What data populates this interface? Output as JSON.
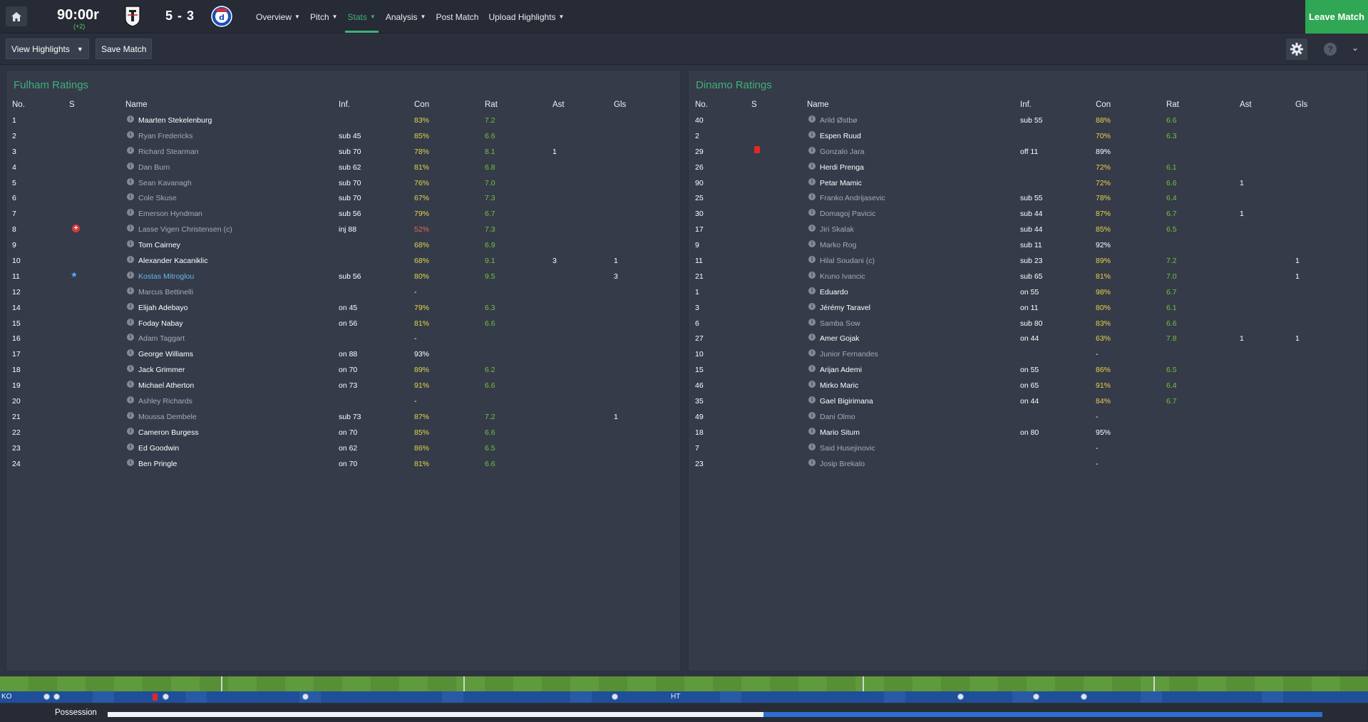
{
  "header": {
    "clock": "90:00r",
    "added_time": "(+2)",
    "score": "5 - 3",
    "nav": [
      {
        "label": "Overview",
        "dropdown": true,
        "active": false
      },
      {
        "label": "Pitch",
        "dropdown": true,
        "active": false
      },
      {
        "label": "Stats",
        "dropdown": true,
        "active": true
      },
      {
        "label": "Analysis",
        "dropdown": true,
        "active": false
      },
      {
        "label": "Post Match",
        "dropdown": false,
        "active": false
      },
      {
        "label": "Upload Highlights",
        "dropdown": true,
        "active": false
      }
    ],
    "leave_label": "Leave Match",
    "accent_color": "#3fb07a",
    "leave_color": "#2fa754"
  },
  "toolbar": {
    "highlights_label": "View Highlights",
    "save_label": "Save Match",
    "help_glyph": "?"
  },
  "columns": {
    "no": "No.",
    "s": "S",
    "name": "Name",
    "inf": "Inf.",
    "con": "Con",
    "rat": "Rat",
    "ast": "Ast",
    "gls": "Gls"
  },
  "home": {
    "title": "Fulham Ratings",
    "rows": [
      {
        "no": "1",
        "name": "Maarten Stekelenburg",
        "style": "on",
        "inf": "",
        "con": "83%",
        "rat": "7.2",
        "ast": "",
        "gls": ""
      },
      {
        "no": "2",
        "name": "Ryan Fredericks",
        "style": "dim",
        "inf": "sub 45",
        "con": "85%",
        "rat": "6.6",
        "ast": "",
        "gls": ""
      },
      {
        "no": "3",
        "name": "Richard Stearman",
        "style": "dim",
        "inf": "sub 70",
        "con": "78%",
        "rat": "8.1",
        "ast": "1",
        "gls": ""
      },
      {
        "no": "4",
        "name": "Dan Burn",
        "style": "dim",
        "inf": "sub 62",
        "con": "81%",
        "rat": "6.8",
        "ast": "",
        "gls": ""
      },
      {
        "no": "5",
        "name": "Sean Kavanagh",
        "style": "dim",
        "inf": "sub 70",
        "con": "76%",
        "rat": "7.0",
        "ast": "",
        "gls": ""
      },
      {
        "no": "6",
        "name": "Cole Skuse",
        "style": "dim",
        "inf": "sub 70",
        "con": "67%",
        "rat": "7.3",
        "ast": "",
        "gls": ""
      },
      {
        "no": "7",
        "name": "Emerson Hyndman",
        "style": "dim",
        "inf": "sub 56",
        "con": "79%",
        "rat": "6.7",
        "ast": "",
        "gls": ""
      },
      {
        "no": "8",
        "name": "Lasse Vigen Christensen (c)",
        "style": "dim",
        "inf": "inj 88",
        "con": "52%",
        "rat": "7.3",
        "ast": "",
        "gls": "",
        "icon": "injury",
        "con_color": "red"
      },
      {
        "no": "9",
        "name": "Tom Cairney",
        "style": "on",
        "inf": "",
        "con": "68%",
        "rat": "6.9",
        "ast": "",
        "gls": ""
      },
      {
        "no": "10",
        "name": "Alexander Kacaniklic",
        "style": "on",
        "inf": "",
        "con": "68%",
        "rat": "9.1",
        "ast": "3",
        "gls": "1"
      },
      {
        "no": "11",
        "name": "Kostas Mitroglou",
        "style": "link",
        "inf": "sub 56",
        "con": "80%",
        "rat": "9.5",
        "ast": "",
        "gls": "3",
        "icon": "star"
      },
      {
        "no": "12",
        "name": "Marcus Bettinelli",
        "style": "dim",
        "inf": "",
        "con": "-",
        "rat": "",
        "ast": "",
        "gls": ""
      },
      {
        "no": "14",
        "name": "Elijah Adebayo",
        "style": "on",
        "inf": "on 45",
        "con": "79%",
        "rat": "6.3",
        "ast": "",
        "gls": ""
      },
      {
        "no": "15",
        "name": "Foday Nabay",
        "style": "on",
        "inf": "on 56",
        "con": "81%",
        "rat": "6.6",
        "ast": "",
        "gls": ""
      },
      {
        "no": "16",
        "name": "Adam Taggart",
        "style": "dim",
        "inf": "",
        "con": "-",
        "rat": "",
        "ast": "",
        "gls": ""
      },
      {
        "no": "17",
        "name": "George Williams",
        "style": "on",
        "inf": "on 88",
        "con": "93%",
        "rat": "",
        "ast": "",
        "gls": "",
        "con_color": "white"
      },
      {
        "no": "18",
        "name": "Jack Grimmer",
        "style": "on",
        "inf": "on 70",
        "con": "89%",
        "rat": "6.2",
        "ast": "",
        "gls": ""
      },
      {
        "no": "19",
        "name": "Michael Atherton",
        "style": "on",
        "inf": "on 73",
        "con": "91%",
        "rat": "6.6",
        "ast": "",
        "gls": ""
      },
      {
        "no": "20",
        "name": "Ashley Richards",
        "style": "dim",
        "inf": "",
        "con": "-",
        "rat": "",
        "ast": "",
        "gls": ""
      },
      {
        "no": "21",
        "name": "Moussa Dembele",
        "style": "dim",
        "inf": "sub 73",
        "con": "87%",
        "rat": "7.2",
        "ast": "",
        "gls": "1"
      },
      {
        "no": "22",
        "name": "Cameron Burgess",
        "style": "on",
        "inf": "on 70",
        "con": "85%",
        "rat": "6.6",
        "ast": "",
        "gls": ""
      },
      {
        "no": "23",
        "name": "Ed Goodwin",
        "style": "on",
        "inf": "on 62",
        "con": "86%",
        "rat": "6.5",
        "ast": "",
        "gls": ""
      },
      {
        "no": "24",
        "name": "Ben Pringle",
        "style": "on",
        "inf": "on 70",
        "con": "81%",
        "rat": "6.6",
        "ast": "",
        "gls": ""
      }
    ]
  },
  "away": {
    "title": "Dinamo Ratings",
    "rows": [
      {
        "no": "40",
        "name": "Arild Østbø",
        "style": "dim",
        "inf": "sub 55",
        "con": "88%",
        "rat": "6.6",
        "ast": "",
        "gls": ""
      },
      {
        "no": "2",
        "name": "Espen Ruud",
        "style": "on",
        "inf": "",
        "con": "70%",
        "rat": "6.3",
        "ast": "",
        "gls": ""
      },
      {
        "no": "29",
        "name": "Gonzalo Jara",
        "style": "dim",
        "inf": "off 11",
        "con": "89%",
        "rat": "",
        "ast": "",
        "gls": "",
        "icon": "redcard",
        "con_color": "white"
      },
      {
        "no": "26",
        "name": "Herdi Prenga",
        "style": "on",
        "inf": "",
        "con": "72%",
        "rat": "6.1",
        "ast": "",
        "gls": ""
      },
      {
        "no": "90",
        "name": "Petar Mamic",
        "style": "on",
        "inf": "",
        "con": "72%",
        "rat": "6.6",
        "ast": "1",
        "gls": ""
      },
      {
        "no": "25",
        "name": "Franko Andrijasevic",
        "style": "dim",
        "inf": "sub 55",
        "con": "78%",
        "rat": "6.4",
        "ast": "",
        "gls": ""
      },
      {
        "no": "30",
        "name": "Domagoj Pavicic",
        "style": "dim",
        "inf": "sub 44",
        "con": "87%",
        "rat": "6.7",
        "ast": "1",
        "gls": ""
      },
      {
        "no": "17",
        "name": "Jiri Skalak",
        "style": "dim",
        "inf": "sub 44",
        "con": "85%",
        "rat": "6.5",
        "ast": "",
        "gls": ""
      },
      {
        "no": "9",
        "name": "Marko Rog",
        "style": "dim",
        "inf": "sub 11",
        "con": "92%",
        "rat": "",
        "ast": "",
        "gls": "",
        "con_color": "white"
      },
      {
        "no": "11",
        "name": "Hilal Soudani (c)",
        "style": "dim",
        "inf": "sub 23",
        "con": "89%",
        "rat": "7.2",
        "ast": "",
        "gls": "1"
      },
      {
        "no": "21",
        "name": "Kruno Ivancic",
        "style": "dim",
        "inf": "sub 65",
        "con": "81%",
        "rat": "7.0",
        "ast": "",
        "gls": "1"
      },
      {
        "no": "1",
        "name": "Eduardo",
        "style": "on",
        "inf": "on 55",
        "con": "98%",
        "rat": "6.7",
        "ast": "",
        "gls": ""
      },
      {
        "no": "3",
        "name": "Jérémy Taravel",
        "style": "on",
        "inf": "on 11",
        "con": "80%",
        "rat": "6.1",
        "ast": "",
        "gls": ""
      },
      {
        "no": "6",
        "name": "Samba Sow",
        "style": "dim",
        "inf": "sub 80",
        "con": "83%",
        "rat": "6.6",
        "ast": "",
        "gls": ""
      },
      {
        "no": "27",
        "name": "Amer Gojak",
        "style": "on",
        "inf": "on 44",
        "con": "63%",
        "rat": "7.8",
        "ast": "1",
        "gls": "1"
      },
      {
        "no": "10",
        "name": "Junior Fernandes",
        "style": "dim",
        "inf": "",
        "con": "-",
        "rat": "",
        "ast": "",
        "gls": ""
      },
      {
        "no": "15",
        "name": "Arijan Ademi",
        "style": "on",
        "inf": "on 55",
        "con": "86%",
        "rat": "6.5",
        "ast": "",
        "gls": ""
      },
      {
        "no": "46",
        "name": "Mirko Maric",
        "style": "on",
        "inf": "on 65",
        "con": "91%",
        "rat": "6.4",
        "ast": "",
        "gls": ""
      },
      {
        "no": "35",
        "name": "Gael Bigirimana",
        "style": "on",
        "inf": "on 44",
        "con": "84%",
        "rat": "6.7",
        "ast": "",
        "gls": ""
      },
      {
        "no": "49",
        "name": "Dani Olmo",
        "style": "dim",
        "inf": "",
        "con": "-",
        "rat": "",
        "ast": "",
        "gls": ""
      },
      {
        "no": "18",
        "name": "Mario Situm",
        "style": "on",
        "inf": "on 80",
        "con": "95%",
        "rat": "",
        "ast": "",
        "gls": "",
        "con_color": "white"
      },
      {
        "no": "7",
        "name": "Said Husejinovic",
        "style": "dim",
        "inf": "",
        "con": "-",
        "rat": "",
        "ast": "",
        "gls": ""
      },
      {
        "no": "23",
        "name": "Josip Brekalo",
        "style": "dim",
        "inf": "",
        "con": "-",
        "rat": "",
        "ast": "",
        "gls": ""
      }
    ]
  },
  "timeline": {
    "ko_label": "KO",
    "ht_label": "HT",
    "possession_label": "Possession",
    "possession_home_fraction": 0.54
  }
}
